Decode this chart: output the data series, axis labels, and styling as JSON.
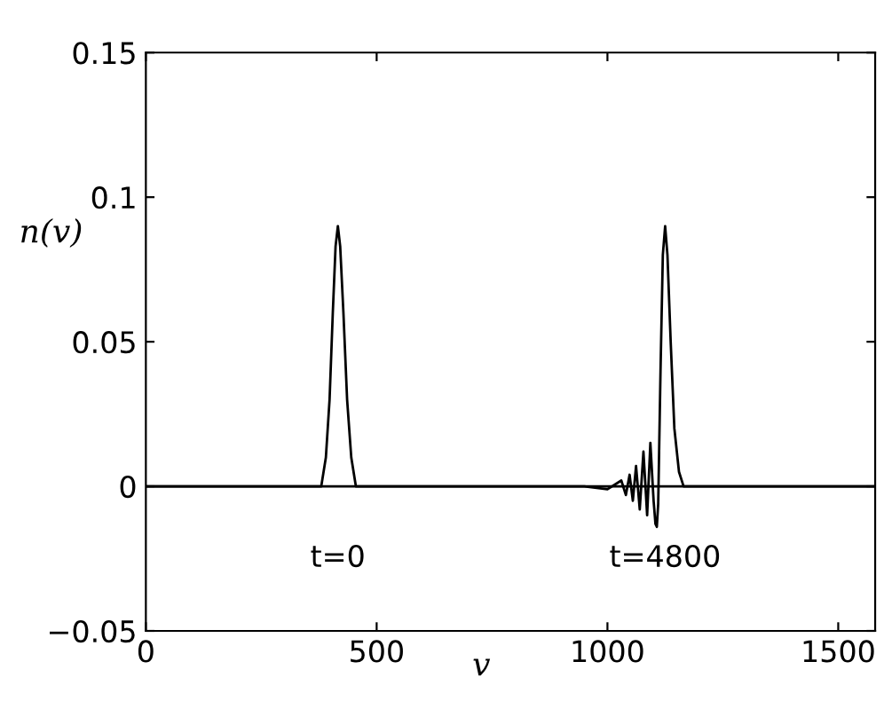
{
  "chart_data": {
    "type": "line",
    "xlabel": "v",
    "ylabel": "n(v)",
    "xlim": [
      0,
      1580
    ],
    "xticks": [
      0,
      500,
      1000,
      1500
    ],
    "ylim": [
      -0.05,
      0.15
    ],
    "yticks": [
      -0.05,
      0,
      0.05,
      0.1,
      0.15
    ],
    "grid": false,
    "legend": false,
    "marker": "none",
    "line_style": "solid",
    "series": [
      {
        "color": "#000000",
        "x": [
          0,
          380,
          390,
          398,
          405,
          411,
          416,
          421,
          428,
          436,
          445,
          455,
          1580
        ],
        "values": [
          0,
          0,
          0.01,
          0.03,
          0.06,
          0.083,
          0.09,
          0.083,
          0.06,
          0.03,
          0.01,
          0,
          0
        ]
      },
      {
        "color": "#000000",
        "x": [
          0,
          950,
          1000,
          1030,
          1040,
          1048,
          1055,
          1062,
          1070,
          1078,
          1086,
          1093,
          1100,
          1104,
          1107,
          1110,
          1115,
          1120,
          1125,
          1130,
          1137,
          1145,
          1155,
          1165,
          1580
        ],
        "values": [
          0,
          0,
          -0.001,
          0.002,
          -0.003,
          0.004,
          -0.005,
          0.007,
          -0.008,
          0.012,
          -0.01,
          0.015,
          -0.005,
          -0.013,
          -0.014,
          -0.006,
          0.04,
          0.08,
          0.09,
          0.08,
          0.05,
          0.02,
          0.005,
          0,
          0
        ]
      }
    ],
    "annotations": [
      "t=0",
      "t=4800"
    ]
  }
}
